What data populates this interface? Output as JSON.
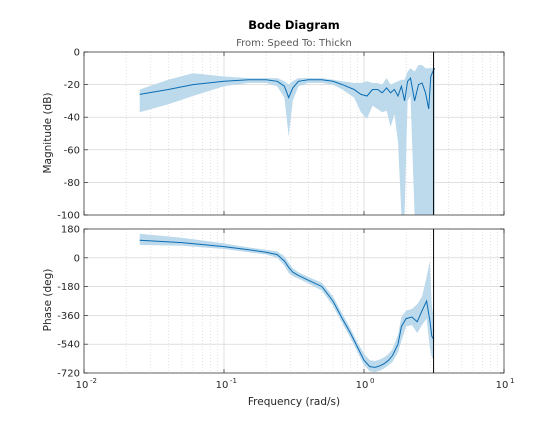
{
  "chart_data": {
    "type": "line",
    "title": "Bode Diagram",
    "subtitle": "From: Speed  To: Thickn",
    "xlabel": "Frequency  (rad/s)",
    "x_scale": "log",
    "xlim": [
      0.01,
      10
    ],
    "x_ticks": [
      0.01,
      0.1,
      1,
      10
    ],
    "x_tick_labels": [
      [
        "10",
        "-2"
      ],
      [
        "10",
        "-1"
      ],
      [
        "10",
        "0"
      ],
      [
        "10",
        "1"
      ]
    ],
    "grid": true,
    "vertical_marker_x": 3.14,
    "colors": {
      "line": "#0b6cb4",
      "band": "#bcdaeb",
      "axes": "#262626",
      "grid": "#cfcfcf",
      "marker": "#000000"
    },
    "panels": [
      {
        "name": "magnitude",
        "ylabel": "Magnitude (dB)",
        "ylim": [
          -100,
          0
        ],
        "y_ticks": [
          0,
          -20,
          -40,
          -60,
          -80,
          -100
        ],
        "y_tick_labels": [
          "0",
          "-20",
          "-40",
          "-60",
          "-80",
          "-100"
        ],
        "series": [
          {
            "x": [
              0.025,
              0.04,
              0.06,
              0.1,
              0.15,
              0.2,
              0.24,
              0.27,
              0.29,
              0.31,
              0.34,
              0.4,
              0.5,
              0.6,
              0.7,
              0.85,
              0.95,
              1.05,
              1.15,
              1.25,
              1.35,
              1.45,
              1.55,
              1.65,
              1.75,
              1.85,
              1.95,
              2.05,
              2.15,
              2.3,
              2.45,
              2.6,
              2.75,
              2.9,
              3.0,
              3.1,
              3.2
            ],
            "y": [
              -26,
              -23,
              -20,
              -18,
              -17,
              -17,
              -18,
              -21,
              -28,
              -22,
              -18,
              -17,
              -17,
              -18,
              -20,
              -23,
              -26,
              -27,
              -23,
              -23,
              -25,
              -22,
              -25,
              -23,
              -27,
              -21,
              -30,
              -18,
              -16,
              -30,
              -20,
              -19,
              -25,
              -35,
              -15,
              -12,
              -10
            ],
            "lower": [
              -37,
              -32,
              -27,
              -21,
              -19,
              -19,
              -21,
              -28,
              -52,
              -30,
              -21,
              -19,
              -19,
              -20,
              -23,
              -28,
              -37,
              -41,
              -33,
              -35,
              -37,
              -36,
              -46,
              -38,
              -55,
              -100,
              -100,
              -30,
              -27,
              -100,
              -100,
              -100,
              -100,
              -100,
              -100,
              -100,
              -100
            ],
            "upper": [
              -23,
              -17,
              -13,
              -15,
              -16,
              -16,
              -16,
              -18,
              -20,
              -18,
              -16,
              -16,
              -16,
              -17,
              -18,
              -19,
              -19,
              -18,
              -19,
              -19,
              -20,
              -16,
              -20,
              -19,
              -18,
              -17,
              -17,
              -12,
              -10,
              -12,
              -8,
              -8,
              -10,
              -10,
              -10,
              -10,
              -10
            ]
          }
        ]
      },
      {
        "name": "phase",
        "ylabel": "Phase (deg)",
        "ylim": [
          -720,
          180
        ],
        "y_ticks": [
          180,
          0,
          -180,
          -360,
          -540,
          -720
        ],
        "y_tick_labels": [
          "180",
          "0",
          "-180",
          "-360",
          "-540",
          "-720"
        ],
        "series": [
          {
            "x": [
              0.025,
              0.05,
              0.1,
              0.15,
              0.2,
              0.24,
              0.27,
              0.29,
              0.31,
              0.34,
              0.4,
              0.5,
              0.6,
              0.7,
              0.8,
              0.9,
              1.0,
              1.1,
              1.2,
              1.3,
              1.4,
              1.5,
              1.6,
              1.75,
              1.85,
              2.0,
              2.2,
              2.4,
              2.6,
              2.8,
              2.95,
              3.05,
              3.15
            ],
            "y": [
              110,
              95,
              70,
              50,
              35,
              20,
              -20,
              -60,
              -90,
              -110,
              -140,
              -180,
              -270,
              -380,
              -470,
              -560,
              -640,
              -680,
              -685,
              -675,
              -660,
              -640,
              -610,
              -540,
              -430,
              -380,
              -370,
              -400,
              -330,
              -270,
              -390,
              -490,
              -510
            ],
            "lower": [
              80,
              75,
              55,
              35,
              20,
              0,
              -50,
              -95,
              -115,
              -130,
              -160,
              -205,
              -300,
              -410,
              -500,
              -590,
              -670,
              -710,
              -715,
              -705,
              -690,
              -670,
              -650,
              -590,
              -520,
              -430,
              -420,
              -470,
              -420,
              -380,
              -560,
              -620,
              -640
            ],
            "upper": [
              150,
              125,
              90,
              65,
              50,
              40,
              10,
              -30,
              -65,
              -90,
              -120,
              -155,
              -240,
              -350,
              -440,
              -530,
              -600,
              -640,
              -645,
              -635,
              -620,
              -600,
              -570,
              -480,
              -370,
              -330,
              -320,
              -290,
              -240,
              -120,
              -20,
              -300,
              -380
            ]
          }
        ]
      }
    ]
  }
}
